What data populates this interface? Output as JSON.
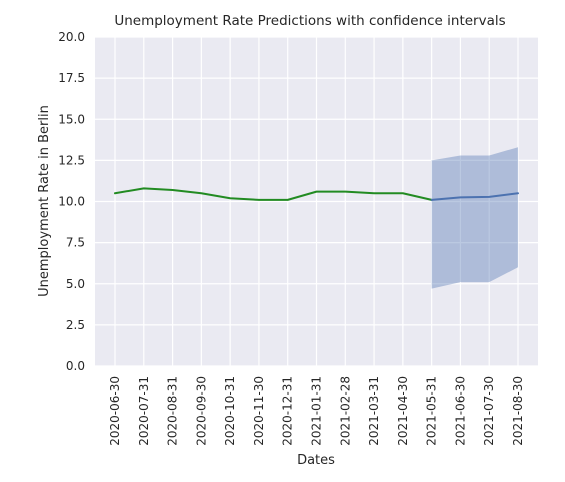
{
  "chart_data": {
    "type": "line",
    "title": "Unemployment Rate Predictions with confidence intervals",
    "xlabel": "Dates",
    "ylabel": "Unemployment Rate in Berlin",
    "ylim": [
      0,
      20
    ],
    "yticks": [
      "0.0",
      "2.5",
      "5.0",
      "7.5",
      "10.0",
      "12.5",
      "15.0",
      "17.5",
      "20.0"
    ],
    "categories": [
      "2020-06-30",
      "2020-07-31",
      "2020-08-31",
      "2020-09-30",
      "2020-10-31",
      "2020-11-30",
      "2020-12-31",
      "2021-01-31",
      "2021-02-28",
      "2021-03-31",
      "2021-04-30",
      "2021-05-31",
      "2021-06-30",
      "2021-07-30",
      "2021-08-30"
    ],
    "grid": true,
    "series": [
      {
        "role": "observed",
        "color": "#228b22",
        "x": [
          "2020-06-30",
          "2020-07-31",
          "2020-08-31",
          "2020-09-30",
          "2020-10-31",
          "2020-11-30",
          "2020-12-31",
          "2021-01-31",
          "2021-02-28",
          "2021-03-31",
          "2021-04-30",
          "2021-05-31"
        ],
        "values": [
          10.5,
          10.8,
          10.7,
          10.5,
          10.2,
          10.1,
          10.1,
          10.6,
          10.6,
          10.5,
          10.5,
          10.1
        ]
      },
      {
        "role": "prediction",
        "color": "#4c72b0",
        "x": [
          "2021-05-31",
          "2021-06-30",
          "2021-07-30",
          "2021-08-30"
        ],
        "values": [
          10.1,
          10.25,
          10.28,
          10.5
        ]
      }
    ],
    "confidence_interval": {
      "color": "#4c72b0",
      "x": [
        "2021-05-31",
        "2021-06-30",
        "2021-07-30",
        "2021-08-30"
      ],
      "lower": [
        4.7,
        5.1,
        5.1,
        6.0
      ],
      "upper": [
        12.5,
        12.8,
        12.8,
        13.3
      ]
    },
    "colors": {
      "plot_background": "#eaeaf2",
      "grid": "#ffffff",
      "text": "#262626"
    }
  }
}
